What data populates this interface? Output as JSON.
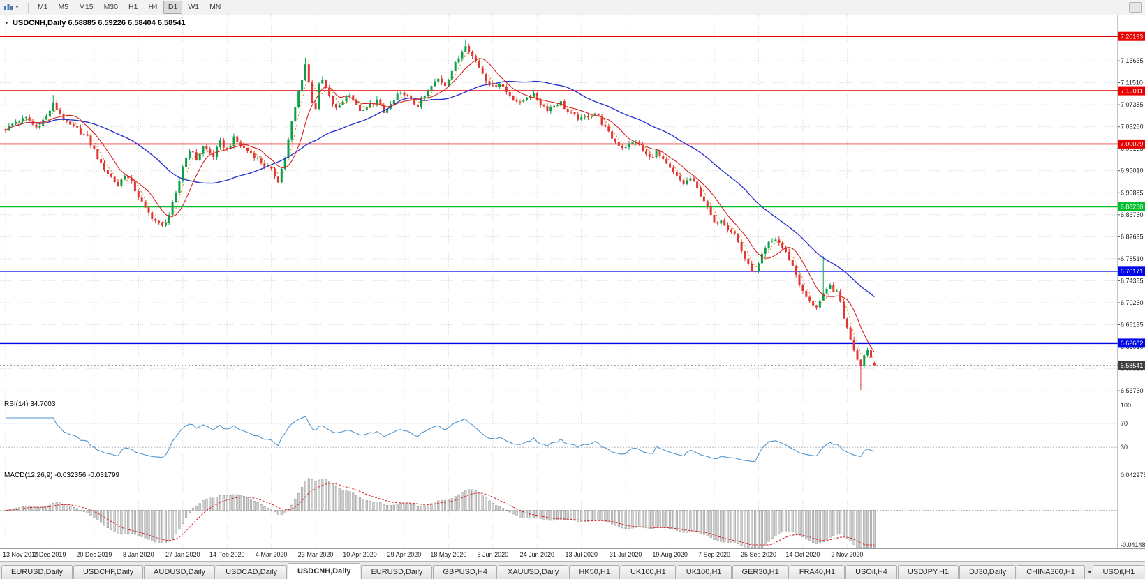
{
  "toolbar": {
    "timeframes": [
      "M1",
      "M5",
      "M15",
      "M30",
      "H1",
      "H4",
      "D1",
      "W1",
      "MN"
    ],
    "active_timeframe": "D1"
  },
  "chart": {
    "title": "USDCNH,Daily  6.58885 6.59226 6.58404 6.58541",
    "symbol": "USDCNH",
    "period": "Daily",
    "open": "6.58885",
    "high": "6.59226",
    "low": "6.58404",
    "close": "6.58541"
  },
  "rsi_panel": {
    "label": "RSI(14) 34.7003"
  },
  "macd_panel": {
    "label": "MACD(12,26,9) -0.032356 -0.031799"
  },
  "tabs": {
    "items": [
      "EURUSD,Daily",
      "USDCHF,Daily",
      "AUDUSD,Daily",
      "USDCAD,Daily",
      "USDCNH,Daily",
      "EURUSD,Daily",
      "GBPUSD,H4",
      "XAUUSD,Daily",
      "HK50,H1",
      "UK100,H1",
      "UK100,H1",
      "GER30,H1",
      "FRA40,H1",
      "USOil,H4",
      "USDJPY,H1",
      "DJ30,Daily",
      "CHINA300,H1",
      "USOil,H1"
    ],
    "active_index": 4,
    "scroll_left_glyph": "◂"
  },
  "colors": {
    "up": "#0aa04a",
    "down": "#e23636",
    "grid": "#dcdcdc",
    "axis_text": "#1c1c1c",
    "panel_border": "#9a9a9a",
    "current_price_badge": "#3f3f3f",
    "badge_text": "#ffffff"
  },
  "chart_data": {
    "type": "candlestick",
    "symbol": "USDCNH",
    "timeframe": "Daily",
    "title": "USDCNH,Daily",
    "last_ohlc": {
      "open": 6.58885,
      "high": 6.59226,
      "low": 6.58404,
      "close": 6.58541
    },
    "y_axis": {
      "min": 6.5325,
      "max": 7.231,
      "tick_step": 0.04125,
      "ticks": [
        7.15635,
        7.1151,
        7.07385,
        7.0326,
        6.99135,
        6.9501,
        6.90885,
        6.8676,
        6.82635,
        6.7851,
        6.74385,
        6.7026,
        6.66135,
        6.6201,
        6.57885,
        6.5376
      ]
    },
    "x_labels": [
      "13 Nov 2019",
      "2 Dec 2019",
      "20 Dec 2019",
      "8 Jan 2020",
      "27 Jan 2020",
      "14 Feb 2020",
      "4 Mar 2020",
      "23 Mar 2020",
      "10 Apr 2020",
      "29 Apr 2020",
      "18 May 2020",
      "5 Jun 2020",
      "24 Jun 2020",
      "13 Jul 2020",
      "31 Jul 2020",
      "19 Aug 2020",
      "7 Sep 2020",
      "25 Sep 2020",
      "14 Oct 2020",
      "2 Nov 2020"
    ],
    "candles_per_label": 13,
    "num_candles": 256,
    "price_path_anchors": [
      [
        0,
        7.028
      ],
      [
        3,
        7.042
      ],
      [
        6,
        7.048
      ],
      [
        9,
        7.031
      ],
      [
        12,
        7.052
      ],
      [
        14,
        7.075
      ],
      [
        16,
        7.058
      ],
      [
        18,
        7.038
      ],
      [
        21,
        7.028
      ],
      [
        24,
        7.012
      ],
      [
        26,
        6.988
      ],
      [
        28,
        6.962
      ],
      [
        31,
        6.938
      ],
      [
        33,
        6.922
      ],
      [
        35,
        6.944
      ],
      [
        37,
        6.926
      ],
      [
        39,
        6.902
      ],
      [
        41,
        6.878
      ],
      [
        44,
        6.856
      ],
      [
        46,
        6.845
      ],
      [
        48,
        6.868
      ],
      [
        50,
        6.905
      ],
      [
        52,
        6.958
      ],
      [
        54,
        6.99
      ],
      [
        56,
        6.972
      ],
      [
        58,
        6.995
      ],
      [
        61,
        6.978
      ],
      [
        63,
        7.003
      ],
      [
        65,
        6.99
      ],
      [
        67,
        7.01
      ],
      [
        70,
        6.992
      ],
      [
        73,
        6.978
      ],
      [
        76,
        6.96
      ],
      [
        78,
        6.95
      ],
      [
        80,
        6.932
      ],
      [
        82,
        6.975
      ],
      [
        84,
        7.04
      ],
      [
        86,
        7.098
      ],
      [
        88,
        7.15
      ],
      [
        89,
        7.115
      ],
      [
        90,
        7.08
      ],
      [
        91,
        7.068
      ],
      [
        92,
        7.11
      ],
      [
        93,
        7.12
      ],
      [
        95,
        7.088
      ],
      [
        97,
        7.065
      ],
      [
        99,
        7.082
      ],
      [
        101,
        7.096
      ],
      [
        103,
        7.07
      ],
      [
        105,
        7.06
      ],
      [
        107,
        7.075
      ],
      [
        109,
        7.082
      ],
      [
        111,
        7.058
      ],
      [
        113,
        7.074
      ],
      [
        115,
        7.09
      ],
      [
        117,
        7.096
      ],
      [
        119,
        7.08
      ],
      [
        121,
        7.072
      ],
      [
        123,
        7.09
      ],
      [
        125,
        7.108
      ],
      [
        127,
        7.122
      ],
      [
        129,
        7.112
      ],
      [
        131,
        7.138
      ],
      [
        133,
        7.162
      ],
      [
        135,
        7.188
      ],
      [
        137,
        7.165
      ],
      [
        139,
        7.145
      ],
      [
        141,
        7.122
      ],
      [
        143,
        7.106
      ],
      [
        145,
        7.116
      ],
      [
        147,
        7.098
      ],
      [
        149,
        7.086
      ],
      [
        151,
        7.076
      ],
      [
        153,
        7.09
      ],
      [
        155,
        7.092
      ],
      [
        157,
        7.076
      ],
      [
        159,
        7.066
      ],
      [
        161,
        7.073
      ],
      [
        163,
        7.078
      ],
      [
        165,
        7.06
      ],
      [
        167,
        7.052
      ],
      [
        169,
        7.046
      ],
      [
        171,
        7.054
      ],
      [
        173,
        7.058
      ],
      [
        175,
        7.04
      ],
      [
        177,
        7.02
      ],
      [
        179,
        7.004
      ],
      [
        181,
        6.995
      ],
      [
        183,
        6.998
      ],
      [
        185,
        7.006
      ],
      [
        187,
        6.986
      ],
      [
        189,
        6.974
      ],
      [
        191,
        6.986
      ],
      [
        193,
        6.968
      ],
      [
        195,
        6.953
      ],
      [
        197,
        6.938
      ],
      [
        199,
        6.926
      ],
      [
        201,
        6.936
      ],
      [
        203,
        6.916
      ],
      [
        205,
        6.895
      ],
      [
        207,
        6.866
      ],
      [
        208,
        6.85
      ],
      [
        210,
        6.86
      ],
      [
        212,
        6.843
      ],
      [
        214,
        6.832
      ],
      [
        216,
        6.8
      ],
      [
        218,
        6.772
      ],
      [
        220,
        6.758
      ],
      [
        222,
        6.79
      ],
      [
        224,
        6.814
      ],
      [
        226,
        6.822
      ],
      [
        228,
        6.806
      ],
      [
        230,
        6.786
      ],
      [
        232,
        6.756
      ],
      [
        234,
        6.722
      ],
      [
        236,
        6.704
      ],
      [
        238,
        6.696
      ],
      [
        240,
        6.716
      ],
      [
        242,
        6.734
      ],
      [
        244,
        6.72
      ],
      [
        245,
        6.704
      ],
      [
        246,
        6.676
      ],
      [
        247,
        6.654
      ],
      [
        248,
        6.636
      ],
      [
        249,
        6.616
      ],
      [
        250,
        6.598
      ],
      [
        251,
        6.588
      ],
      [
        252,
        6.604
      ],
      [
        253,
        6.616
      ],
      [
        254,
        6.6
      ],
      [
        255,
        6.585
      ]
    ],
    "wick_spikes": [
      {
        "i": 14,
        "high": 7.092
      },
      {
        "i": 88,
        "high": 7.162
      },
      {
        "i": 135,
        "high": 7.1965
      },
      {
        "i": 240,
        "high": 6.79
      },
      {
        "i": 251,
        "low": 6.5389
      }
    ],
    "hlines": [
      {
        "value": 7.20193,
        "color": "#e60000",
        "width": 1.6
      },
      {
        "value": 7.10011,
        "color": "#e60000",
        "width": 1.6
      },
      {
        "value": 7.00029,
        "color": "#e60000",
        "width": 1.6
      },
      {
        "value": 6.8825,
        "color": "#00bf2f",
        "width": 1.6
      },
      {
        "value": 6.76171,
        "color": "#0008e6",
        "width": 1.6
      },
      {
        "value": 6.62682,
        "color": "#0008e6",
        "width": 2.4
      }
    ],
    "current_price": 6.58541,
    "moving_averages": [
      {
        "name": "ma-slow",
        "period": 34,
        "color": "#2a35cf",
        "dash": null,
        "width": 1.4
      },
      {
        "name": "ma-medium",
        "period": 9,
        "color": "#d42020",
        "dash": null,
        "width": 1.1
      },
      {
        "name": "ma-fast",
        "period": 4,
        "color": "#e0851c",
        "dash": "2 3",
        "width": 1
      }
    ],
    "rsi": {
      "period": 14,
      "value": 34.7003,
      "color": "#4f94cd",
      "levels": [
        100,
        70,
        30
      ],
      "range": [
        0,
        100
      ]
    },
    "macd": {
      "fast": 12,
      "slow": 26,
      "signal_period": 9,
      "macd_value": -0.032356,
      "signal_value": -0.031799,
      "axis_labels": [
        "0.042275",
        "-0.041480"
      ],
      "range": [
        -0.04148,
        0.042275
      ],
      "hist_fill": "#d4d4d4",
      "hist_stroke": "#8a8a8a",
      "signal_color": "#d42020"
    }
  }
}
